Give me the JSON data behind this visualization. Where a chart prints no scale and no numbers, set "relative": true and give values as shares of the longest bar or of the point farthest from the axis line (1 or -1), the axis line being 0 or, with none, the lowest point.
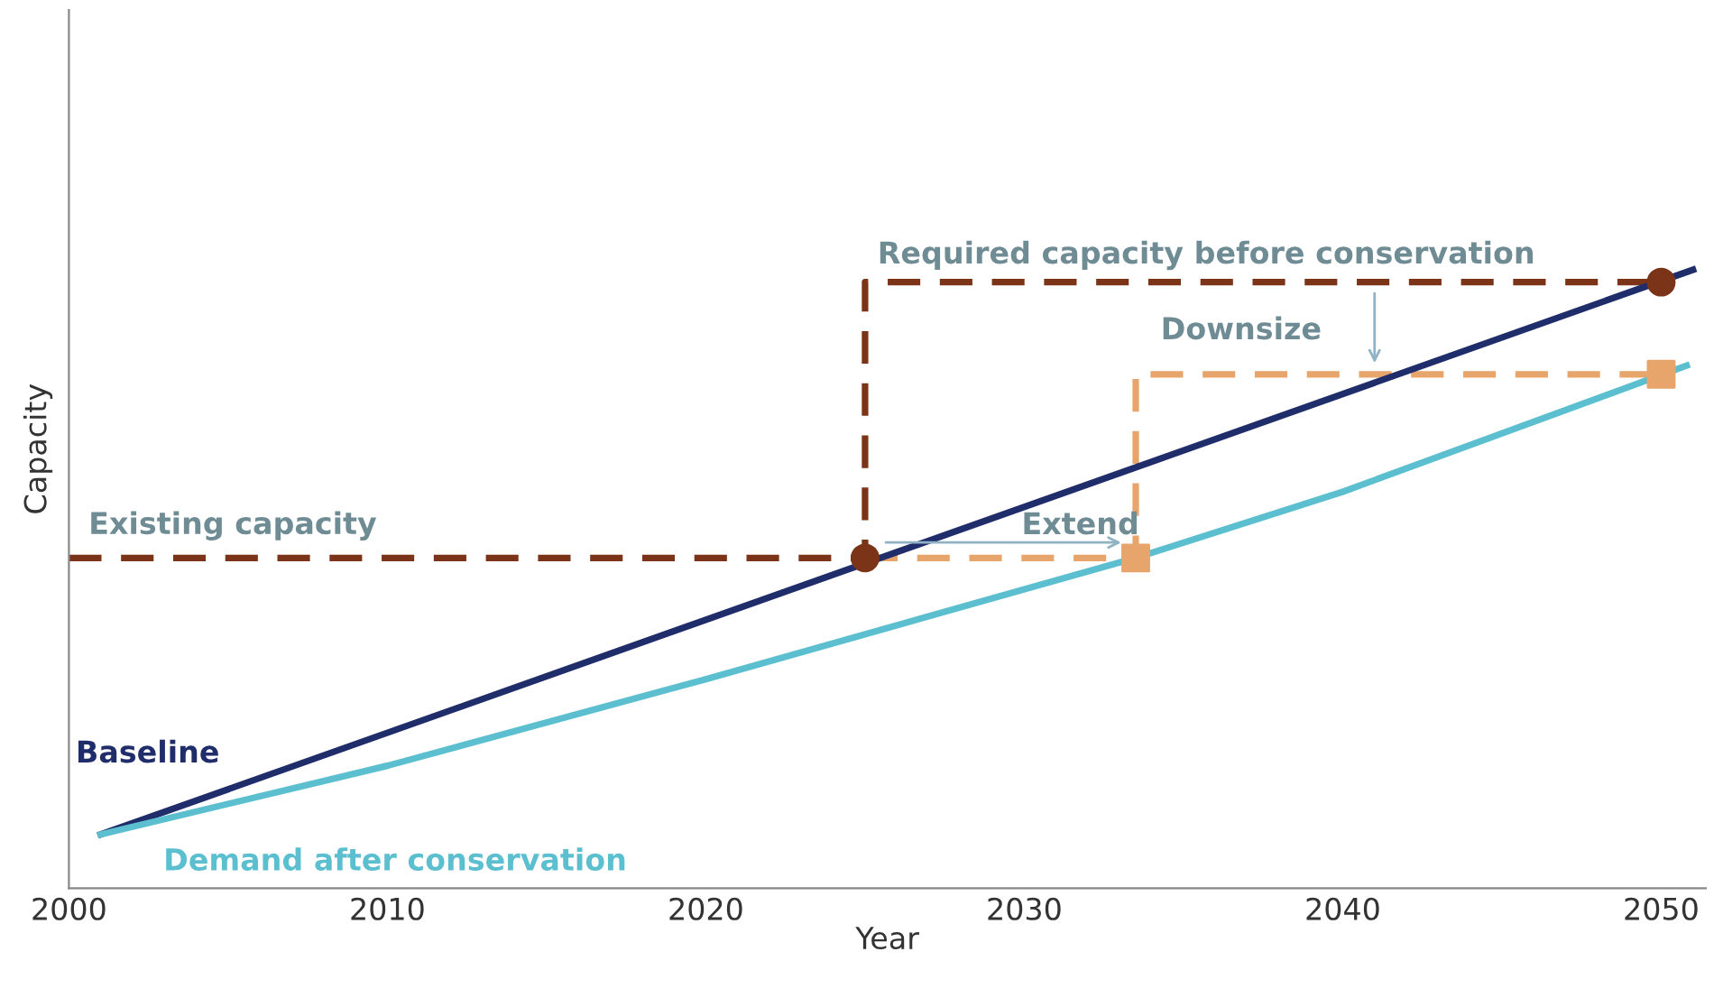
{
  "chart_data": {
    "type": "line",
    "relative": true,
    "xlabel": "Year",
    "ylabel": "Capacity",
    "xlim": [
      2000,
      2051.4
    ],
    "xticks": [
      2000,
      2010,
      2020,
      2030,
      2040,
      2050
    ],
    "grid": false,
    "legend": false,
    "series": [
      {
        "name": "Baseline",
        "color": "#1f2d6b",
        "x": [
          2001,
          2051
        ],
        "values": [
          0.087,
          1.0
        ],
        "line_style": "solid",
        "marker": "none"
      },
      {
        "name": "Demand after conservation",
        "color": "#5bbfd0",
        "x": [
          2001,
          2010,
          2020,
          2033.5,
          2040,
          2050.8
        ],
        "values": [
          0.087,
          0.198,
          0.338,
          0.534,
          0.641,
          0.845
        ],
        "line_style": "solid",
        "marker": "none"
      },
      {
        "color": "#7b3418",
        "x": [
          2000,
          2025,
          2025,
          2050
        ],
        "values": [
          0.534,
          0.534,
          0.98,
          0.98
        ],
        "line_style": "dashed",
        "marker": "none"
      },
      {
        "color": "#e7a56c",
        "x": [
          2025,
          2033.5,
          2033.5,
          2050
        ],
        "values": [
          0.534,
          0.534,
          0.831,
          0.831
        ],
        "line_style": "dashed",
        "marker": "none"
      },
      {
        "type": "scatter",
        "color": "#7b3418",
        "x": [
          2025,
          2050
        ],
        "values": [
          0.534,
          0.98
        ],
        "marker": "circle"
      },
      {
        "type": "scatter",
        "color": "#e7a56c",
        "x": [
          2033.5,
          2050
        ],
        "values": [
          0.534,
          0.831
        ],
        "marker": "square"
      }
    ],
    "annotations": [
      "Existing capacity",
      "Required capacity before conservation",
      "Downsize",
      "Extend"
    ]
  }
}
